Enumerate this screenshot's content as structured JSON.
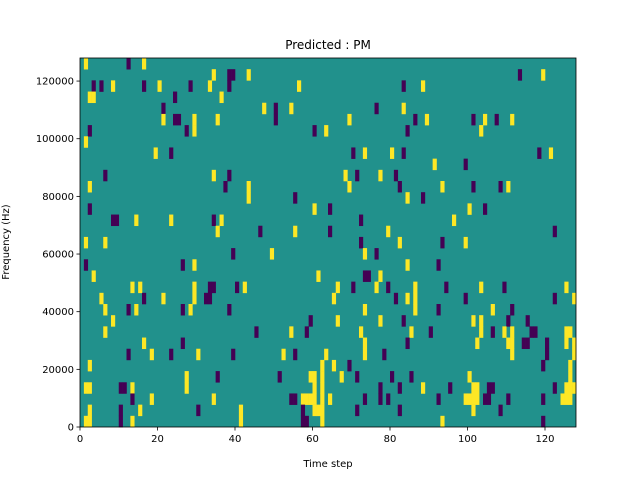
{
  "chart_data": {
    "type": "heatmap",
    "title": "Predicted : PM",
    "xlabel": "Time step",
    "ylabel": "Frequency (Hz)",
    "xlim": [
      0,
      128
    ],
    "ylim": [
      0,
      128000
    ],
    "xticks": [
      0,
      20,
      40,
      60,
      80,
      100,
      120
    ],
    "yticks": [
      0,
      20000,
      40000,
      60000,
      80000,
      100000,
      120000
    ],
    "xtick_labels": [
      "0",
      "20",
      "40",
      "60",
      "80",
      "100",
      "120"
    ],
    "ytick_labels": [
      "0",
      "20000",
      "40000",
      "60000",
      "80000",
      "100000",
      "120000"
    ],
    "time_steps": 128,
    "freq_bins": 33,
    "colormap": {
      "-1": "#440154",
      "0": "#21918c",
      "1": "#fde725"
    },
    "default_value": 0,
    "rows_high_to_low": [
      {
        "pos": [
          1,
          16
        ],
        "neg": [
          12
        ]
      },
      {
        "pos": [
          34,
          43,
          119
        ],
        "neg": [
          38,
          39,
          113
        ]
      },
      {
        "pos": [
          8,
          20,
          33,
          56,
          88
        ],
        "neg": [
          3,
          5,
          16,
          28,
          38,
          83
        ]
      },
      {
        "pos": [
          2,
          3,
          36
        ],
        "neg": [
          24
        ]
      },
      {
        "pos": [
          47,
          54,
          83
        ],
        "neg": [
          21,
          50,
          76
        ]
      },
      {
        "pos": [
          21,
          29,
          35,
          69,
          89,
          104,
          111
        ],
        "neg": [
          24,
          25,
          50,
          86,
          101,
          107
        ]
      },
      {
        "pos": [
          29,
          63,
          103
        ],
        "neg": [
          2,
          27,
          60,
          84
        ]
      },
      {
        "pos": [
          1
        ],
        "neg": []
      },
      {
        "pos": [
          19,
          73,
          80,
          121
        ],
        "neg": [
          23,
          70,
          83,
          118
        ]
      },
      {
        "pos": [
          91
        ],
        "neg": [
          99
        ]
      },
      {
        "pos": [
          34,
          68,
          77
        ],
        "neg": [
          6,
          38,
          71,
          81
        ]
      },
      {
        "pos": [
          2,
          43,
          69,
          93,
          110
        ],
        "neg": [
          37,
          82,
          101,
          108
        ]
      },
      {
        "pos": [
          43,
          84
        ],
        "neg": [
          55,
          88
        ]
      },
      {
        "pos": [
          60,
          100
        ],
        "neg": [
          2,
          64,
          104
        ]
      },
      {
        "pos": [
          14,
          23,
          36,
          96
        ],
        "neg": [
          8,
          9,
          34,
          72
        ]
      },
      {
        "pos": [
          35,
          55,
          79
        ],
        "neg": [
          46,
          64,
          122
        ]
      },
      {
        "pos": [
          1,
          6,
          82,
          99
        ],
        "neg": [
          72,
          93
        ]
      },
      {
        "pos": [
          49,
          73
        ],
        "neg": [
          39,
          76
        ]
      },
      {
        "pos": [
          29,
          84
        ],
        "neg": [
          1,
          26,
          92
        ]
      },
      {
        "pos": [
          3,
          61,
          77
        ],
        "neg": [
          73,
          74
        ]
      },
      {
        "pos": [
          13,
          15,
          29,
          42,
          66,
          76,
          86,
          103,
          125
        ],
        "neg": [
          33,
          34,
          40,
          70,
          79,
          94,
          109
        ]
      },
      {
        "pos": [
          5,
          21,
          29,
          65,
          84,
          86,
          127
        ],
        "neg": [
          16,
          32,
          33,
          81,
          99,
          122
        ]
      },
      {
        "pos": [
          6,
          14,
          28,
          73,
          86,
          106
        ],
        "neg": [
          12,
          26,
          38,
          92,
          111
        ]
      },
      {
        "pos": [
          8,
          66,
          77,
          101,
          103
        ],
        "neg": [
          59,
          83,
          110,
          115
        ]
      },
      {
        "pos": [
          6,
          54,
          72,
          85,
          103,
          109,
          111,
          125,
          126
        ],
        "neg": [
          45,
          58,
          90,
          106,
          116,
          117
        ]
      },
      {
        "pos": [
          16,
          73,
          102,
          110,
          111,
          125,
          127
        ],
        "neg": [
          26,
          84,
          114,
          115,
          120
        ]
      },
      {
        "pos": [
          18,
          30,
          52,
          63,
          73,
          111,
          127
        ],
        "neg": [
          12,
          23,
          39,
          55,
          78,
          120
        ]
      },
      {
        "pos": [
          2,
          62,
          65,
          126
        ],
        "neg": [
          69,
          119
        ]
      },
      {
        "pos": [
          27,
          59,
          60,
          62,
          67,
          100,
          126
        ],
        "neg": [
          35,
          51,
          71,
          80,
          85
        ]
      },
      {
        "pos": [
          1,
          2,
          13,
          27,
          60,
          62,
          88,
          101,
          102,
          125,
          126,
          127
        ],
        "neg": [
          10,
          11,
          77,
          82,
          95,
          105,
          106,
          122
        ]
      },
      {
        "pos": [
          18,
          34,
          57,
          58,
          59,
          60,
          62,
          64,
          99,
          100,
          101,
          102,
          124,
          125,
          126
        ],
        "neg": [
          13,
          54,
          55,
          73,
          77,
          79,
          92,
          104,
          105,
          110,
          119
        ]
      },
      {
        "pos": [
          2,
          15,
          41,
          60,
          61,
          62,
          101
        ],
        "neg": [
          10,
          30,
          57,
          71,
          82,
          108
        ]
      },
      {
        "pos": [
          1,
          2,
          13,
          41,
          62,
          93
        ],
        "neg": [
          10,
          57,
          58,
          119
        ]
      }
    ]
  }
}
